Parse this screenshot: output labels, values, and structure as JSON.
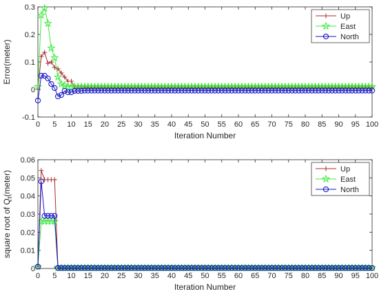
{
  "chart_data": [
    {
      "type": "line",
      "title": "",
      "xlabel": "Iteration Number",
      "ylabel": "Error(meter)",
      "xlim": [
        0,
        100
      ],
      "ylim": [
        -0.1,
        0.3
      ],
      "xticks": [
        0,
        5,
        10,
        15,
        20,
        25,
        30,
        35,
        40,
        45,
        50,
        55,
        60,
        65,
        70,
        75,
        80,
        85,
        90,
        95,
        100
      ],
      "yticks": [
        -0.1,
        0,
        0.1,
        0.2,
        0.3
      ],
      "ytick_labels": [
        "-0.1",
        "0",
        "0.1",
        "0.2",
        "0.3"
      ],
      "legend": "top-right",
      "grid": false,
      "series": [
        {
          "name": "Up",
          "color": "#a52a2a",
          "marker": "plus",
          "values": [
            0.001,
            0.12,
            0.135,
            0.095,
            0.1,
            0.08,
            0.075,
            0.06,
            0.045,
            0.03,
            0.03,
            0.008,
            0.008,
            0.008,
            0.008,
            0.008,
            0.008,
            0.008,
            0.008,
            0.008,
            0.008,
            0.008,
            0.008,
            0.008,
            0.008,
            0.008,
            0.008,
            0.008,
            0.008,
            0.008,
            0.008,
            0.008,
            0.008,
            0.008,
            0.008,
            0.008,
            0.008,
            0.008,
            0.008,
            0.008,
            0.008,
            0.008,
            0.008,
            0.008,
            0.008,
            0.008,
            0.008,
            0.008,
            0.008,
            0.008,
            0.008,
            0.008,
            0.008,
            0.008,
            0.008,
            0.008,
            0.008,
            0.008,
            0.008,
            0.008,
            0.008,
            0.008,
            0.008,
            0.008,
            0.008,
            0.008,
            0.008,
            0.008,
            0.008,
            0.008,
            0.008,
            0.008,
            0.008,
            0.008,
            0.008,
            0.008,
            0.008,
            0.008,
            0.008,
            0.008,
            0.008,
            0.008,
            0.008,
            0.008,
            0.008,
            0.008,
            0.008,
            0.008,
            0.008,
            0.008,
            0.008,
            0.008,
            0.008,
            0.008,
            0.008,
            0.008,
            0.008,
            0.008,
            0.008,
            0.008,
            0.008
          ]
        },
        {
          "name": "East",
          "color": "#3ee83e",
          "marker": "star",
          "values": [
            0.01,
            0.27,
            0.295,
            0.24,
            0.15,
            0.115,
            0.045,
            0.02,
            0.015,
            0.01,
            0.01,
            0.01,
            0.01,
            0.01,
            0.01,
            0.01,
            0.01,
            0.01,
            0.01,
            0.01,
            0.01,
            0.01,
            0.01,
            0.01,
            0.01,
            0.01,
            0.01,
            0.01,
            0.01,
            0.01,
            0.01,
            0.01,
            0.01,
            0.01,
            0.01,
            0.01,
            0.01,
            0.01,
            0.01,
            0.01,
            0.01,
            0.01,
            0.01,
            0.01,
            0.01,
            0.01,
            0.01,
            0.01,
            0.01,
            0.01,
            0.01,
            0.01,
            0.01,
            0.01,
            0.01,
            0.01,
            0.01,
            0.01,
            0.01,
            0.01,
            0.01,
            0.01,
            0.01,
            0.01,
            0.01,
            0.01,
            0.01,
            0.01,
            0.01,
            0.01,
            0.01,
            0.01,
            0.01,
            0.01,
            0.01,
            0.01,
            0.01,
            0.01,
            0.01,
            0.01,
            0.01,
            0.01,
            0.01,
            0.01,
            0.01,
            0.01,
            0.01,
            0.01,
            0.01,
            0.01,
            0.01,
            0.01,
            0.01,
            0.01,
            0.01,
            0.01,
            0.01,
            0.01,
            0.01,
            0.01,
            0.01
          ]
        },
        {
          "name": "North",
          "color": "#1414c8",
          "marker": "circle",
          "values": [
            -0.04,
            0.05,
            0.05,
            0.04,
            0.02,
            0.005,
            -0.025,
            -0.02,
            -0.005,
            -0.01,
            -0.01,
            -0.005,
            -0.005,
            -0.005,
            -0.004,
            -0.004,
            -0.004,
            -0.004,
            -0.004,
            -0.004,
            -0.004,
            -0.004,
            -0.004,
            -0.004,
            -0.004,
            -0.004,
            -0.004,
            -0.004,
            -0.004,
            -0.004,
            -0.004,
            -0.004,
            -0.004,
            -0.004,
            -0.004,
            -0.004,
            -0.004,
            -0.004,
            -0.004,
            -0.004,
            -0.004,
            -0.004,
            -0.004,
            -0.004,
            -0.004,
            -0.004,
            -0.004,
            -0.004,
            -0.004,
            -0.004,
            -0.004,
            -0.004,
            -0.004,
            -0.004,
            -0.004,
            -0.004,
            -0.004,
            -0.004,
            -0.004,
            -0.004,
            -0.004,
            -0.004,
            -0.004,
            -0.004,
            -0.004,
            -0.004,
            -0.004,
            -0.004,
            -0.004,
            -0.004,
            -0.004,
            -0.004,
            -0.004,
            -0.004,
            -0.004,
            -0.004,
            -0.004,
            -0.004,
            -0.004,
            -0.004,
            -0.004,
            -0.004,
            -0.004,
            -0.004,
            -0.004,
            -0.004,
            -0.004,
            -0.004,
            -0.004,
            -0.004,
            -0.004,
            -0.004,
            -0.004,
            -0.004,
            -0.004,
            -0.004,
            -0.004,
            -0.004,
            -0.004,
            -0.004,
            -0.004
          ]
        }
      ]
    },
    {
      "type": "line",
      "title": "",
      "xlabel": "Iteration Number",
      "ylabel": "square root of Q",
      "ylabel_subscript": "t",
      "ylabel_suffix": "(meter)",
      "xlim": [
        0,
        100
      ],
      "ylim": [
        0,
        0.06
      ],
      "xticks": [
        0,
        5,
        10,
        15,
        20,
        25,
        30,
        35,
        40,
        45,
        50,
        55,
        60,
        65,
        70,
        75,
        80,
        85,
        90,
        95,
        100
      ],
      "yticks": [
        0,
        0.01,
        0.02,
        0.03,
        0.04,
        0.05,
        0.06
      ],
      "ytick_labels": [
        "0",
        "0.01",
        "0.02",
        "0.03",
        "0.04",
        "0.05",
        "0.06"
      ],
      "legend": "top-right",
      "grid": false,
      "series": [
        {
          "name": "Up",
          "color": "#a52a2a",
          "marker": "plus",
          "values": [
            0.001,
            0.054,
            0.049,
            0.049,
            0.049,
            0.049,
            0.0003,
            0.0003,
            0.0003,
            0.0003,
            0.0003,
            0.0003,
            0.0003,
            0.0003,
            0.0003,
            0.0003,
            0.0003,
            0.0003,
            0.0003,
            0.0003,
            0.0003,
            0.0003,
            0.0003,
            0.0003,
            0.0003,
            0.0003,
            0.0003,
            0.0003,
            0.0003,
            0.0003,
            0.0003,
            0.0003,
            0.0003,
            0.0003,
            0.0003,
            0.0003,
            0.0003,
            0.0003,
            0.0003,
            0.0003,
            0.0003,
            0.0003,
            0.0003,
            0.0003,
            0.0003,
            0.0003,
            0.0003,
            0.0003,
            0.0003,
            0.0003,
            0.0003,
            0.0003,
            0.0003,
            0.0003,
            0.0003,
            0.0003,
            0.0003,
            0.0003,
            0.0003,
            0.0003,
            0.0003,
            0.0003,
            0.0003,
            0.0003,
            0.0003,
            0.0003,
            0.0003,
            0.0003,
            0.0003,
            0.0003,
            0.0003,
            0.0003,
            0.0003,
            0.0003,
            0.0003,
            0.0003,
            0.0003,
            0.0003,
            0.0003,
            0.0003,
            0.0003,
            0.0003,
            0.0003,
            0.0003,
            0.0003,
            0.0003,
            0.0003,
            0.0003,
            0.0003,
            0.0003,
            0.0003,
            0.0003,
            0.0003,
            0.0003,
            0.0003,
            0.0003,
            0.0003,
            0.0003,
            0.0003,
            0.0003,
            0.0003
          ]
        },
        {
          "name": "East",
          "color": "#3ee83e",
          "marker": "star",
          "values": [
            0.001,
            0.026,
            0.026,
            0.026,
            0.026,
            0.026,
            0.0003,
            0.0003,
            0.0003,
            0.0003,
            0.0003,
            0.0003,
            0.0003,
            0.0003,
            0.0003,
            0.0003,
            0.0003,
            0.0003,
            0.0003,
            0.0003,
            0.0003,
            0.0003,
            0.0003,
            0.0003,
            0.0003,
            0.0003,
            0.0003,
            0.0003,
            0.0003,
            0.0003,
            0.0003,
            0.0003,
            0.0003,
            0.0003,
            0.0003,
            0.0003,
            0.0003,
            0.0003,
            0.0003,
            0.0003,
            0.0003,
            0.0003,
            0.0003,
            0.0003,
            0.0003,
            0.0003,
            0.0003,
            0.0003,
            0.0003,
            0.0003,
            0.0003,
            0.0003,
            0.0003,
            0.0003,
            0.0003,
            0.0003,
            0.0003,
            0.0003,
            0.0003,
            0.0003,
            0.0003,
            0.0003,
            0.0003,
            0.0003,
            0.0003,
            0.0003,
            0.0003,
            0.0003,
            0.0003,
            0.0003,
            0.0003,
            0.0003,
            0.0003,
            0.0003,
            0.0003,
            0.0003,
            0.0003,
            0.0003,
            0.0003,
            0.0003,
            0.0003,
            0.0003,
            0.0003,
            0.0003,
            0.0003,
            0.0003,
            0.0003,
            0.0003,
            0.0003,
            0.0003,
            0.0003,
            0.0003,
            0.0003,
            0.0003,
            0.0003,
            0.0003,
            0.0003,
            0.0003,
            0.0003,
            0.0003,
            0.0003
          ]
        },
        {
          "name": "North",
          "color": "#1414c8",
          "marker": "circle",
          "values": [
            0.001,
            0.048,
            0.029,
            0.029,
            0.029,
            0.029,
            0.0003,
            0.0003,
            0.0003,
            0.0003,
            0.0003,
            0.0003,
            0.0003,
            0.0003,
            0.0003,
            0.0003,
            0.0003,
            0.0003,
            0.0003,
            0.0003,
            0.0003,
            0.0003,
            0.0003,
            0.0003,
            0.0003,
            0.0003,
            0.0003,
            0.0003,
            0.0003,
            0.0003,
            0.0003,
            0.0003,
            0.0003,
            0.0003,
            0.0003,
            0.0003,
            0.0003,
            0.0003,
            0.0003,
            0.0003,
            0.0003,
            0.0003,
            0.0003,
            0.0003,
            0.0003,
            0.0003,
            0.0003,
            0.0003,
            0.0003,
            0.0003,
            0.0003,
            0.0003,
            0.0003,
            0.0003,
            0.0003,
            0.0003,
            0.0003,
            0.0003,
            0.0003,
            0.0003,
            0.0003,
            0.0003,
            0.0003,
            0.0003,
            0.0003,
            0.0003,
            0.0003,
            0.0003,
            0.0003,
            0.0003,
            0.0003,
            0.0003,
            0.0003,
            0.0003,
            0.0003,
            0.0003,
            0.0003,
            0.0003,
            0.0003,
            0.0003,
            0.0003,
            0.0003,
            0.0003,
            0.0003,
            0.0003,
            0.0003,
            0.0003,
            0.0003,
            0.0003,
            0.0003,
            0.0003,
            0.0003,
            0.0003,
            0.0003,
            0.0003,
            0.0003,
            0.0003,
            0.0003,
            0.0003,
            0.0003,
            0.0003
          ]
        }
      ]
    }
  ]
}
